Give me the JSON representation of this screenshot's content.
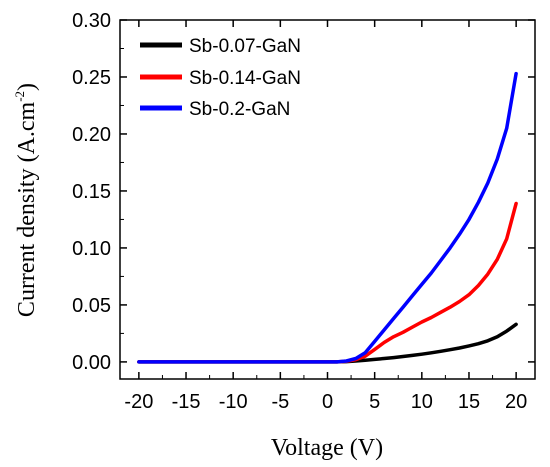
{
  "chart_data": {
    "type": "line",
    "xlabel": "Voltage (V)",
    "ylabel": {
      "text": "Current density (A.cm",
      "superscript": "-2",
      "closing": ")"
    },
    "xlim": [
      -22,
      22
    ],
    "ylim": [
      -0.015,
      0.3
    ],
    "x_ticks": [
      -20,
      -15,
      -10,
      -5,
      0,
      5,
      10,
      15,
      20
    ],
    "x_tick_labels": [
      "-20",
      "-15",
      "-10",
      "-5",
      "0",
      "5",
      "10",
      "15",
      "20"
    ],
    "y_ticks": [
      0.0,
      0.05,
      0.1,
      0.15,
      0.2,
      0.25,
      0.3
    ],
    "y_tick_labels": [
      "0.00",
      "0.05",
      "0.10",
      "0.15",
      "0.20",
      "0.25",
      "0.30"
    ],
    "grid": false,
    "legend_position": "top-left",
    "series": [
      {
        "name": "Sb-0.07-GaN",
        "color": "#000000",
        "x": [
          -20,
          -15,
          -10,
          -5,
          0,
          1,
          2,
          3,
          4,
          5,
          6,
          7,
          8,
          9,
          10,
          11,
          12,
          13,
          14,
          15,
          16,
          17,
          18,
          19,
          20
        ],
        "y": [
          0.0,
          0.0,
          0.0,
          0.0,
          0.0,
          0.0,
          0.0003,
          0.0008,
          0.0015,
          0.0022,
          0.003,
          0.0038,
          0.0047,
          0.0057,
          0.0068,
          0.008,
          0.0093,
          0.0107,
          0.0122,
          0.014,
          0.016,
          0.0185,
          0.022,
          0.027,
          0.033
        ]
      },
      {
        "name": "Sb-0.14-GaN",
        "color": "#ff0000",
        "x": [
          -20,
          -15,
          -10,
          -5,
          0,
          1,
          2,
          3,
          4,
          5,
          6,
          7,
          8,
          9,
          10,
          11,
          12,
          13,
          14,
          15,
          16,
          17,
          18,
          19,
          20
        ],
        "y": [
          0.0,
          0.0,
          0.0,
          0.0,
          0.0,
          0.0,
          0.0005,
          0.002,
          0.005,
          0.011,
          0.017,
          0.022,
          0.026,
          0.0305,
          0.035,
          0.039,
          0.0435,
          0.048,
          0.053,
          0.059,
          0.067,
          0.077,
          0.09,
          0.108,
          0.139
        ]
      },
      {
        "name": "Sb-0.2-GaN",
        "color": "#0000ff",
        "x": [
          -20,
          -15,
          -10,
          -5,
          0,
          1,
          2,
          3,
          4,
          5,
          6,
          7,
          8,
          9,
          10,
          11,
          12,
          13,
          14,
          15,
          16,
          17,
          18,
          19,
          20
        ],
        "y": [
          0.0,
          0.0,
          0.0,
          0.0,
          0.0,
          0.0,
          0.0008,
          0.003,
          0.008,
          0.018,
          0.028,
          0.038,
          0.048,
          0.058,
          0.068,
          0.078,
          0.089,
          0.1,
          0.112,
          0.125,
          0.14,
          0.157,
          0.178,
          0.205,
          0.253
        ]
      }
    ]
  }
}
